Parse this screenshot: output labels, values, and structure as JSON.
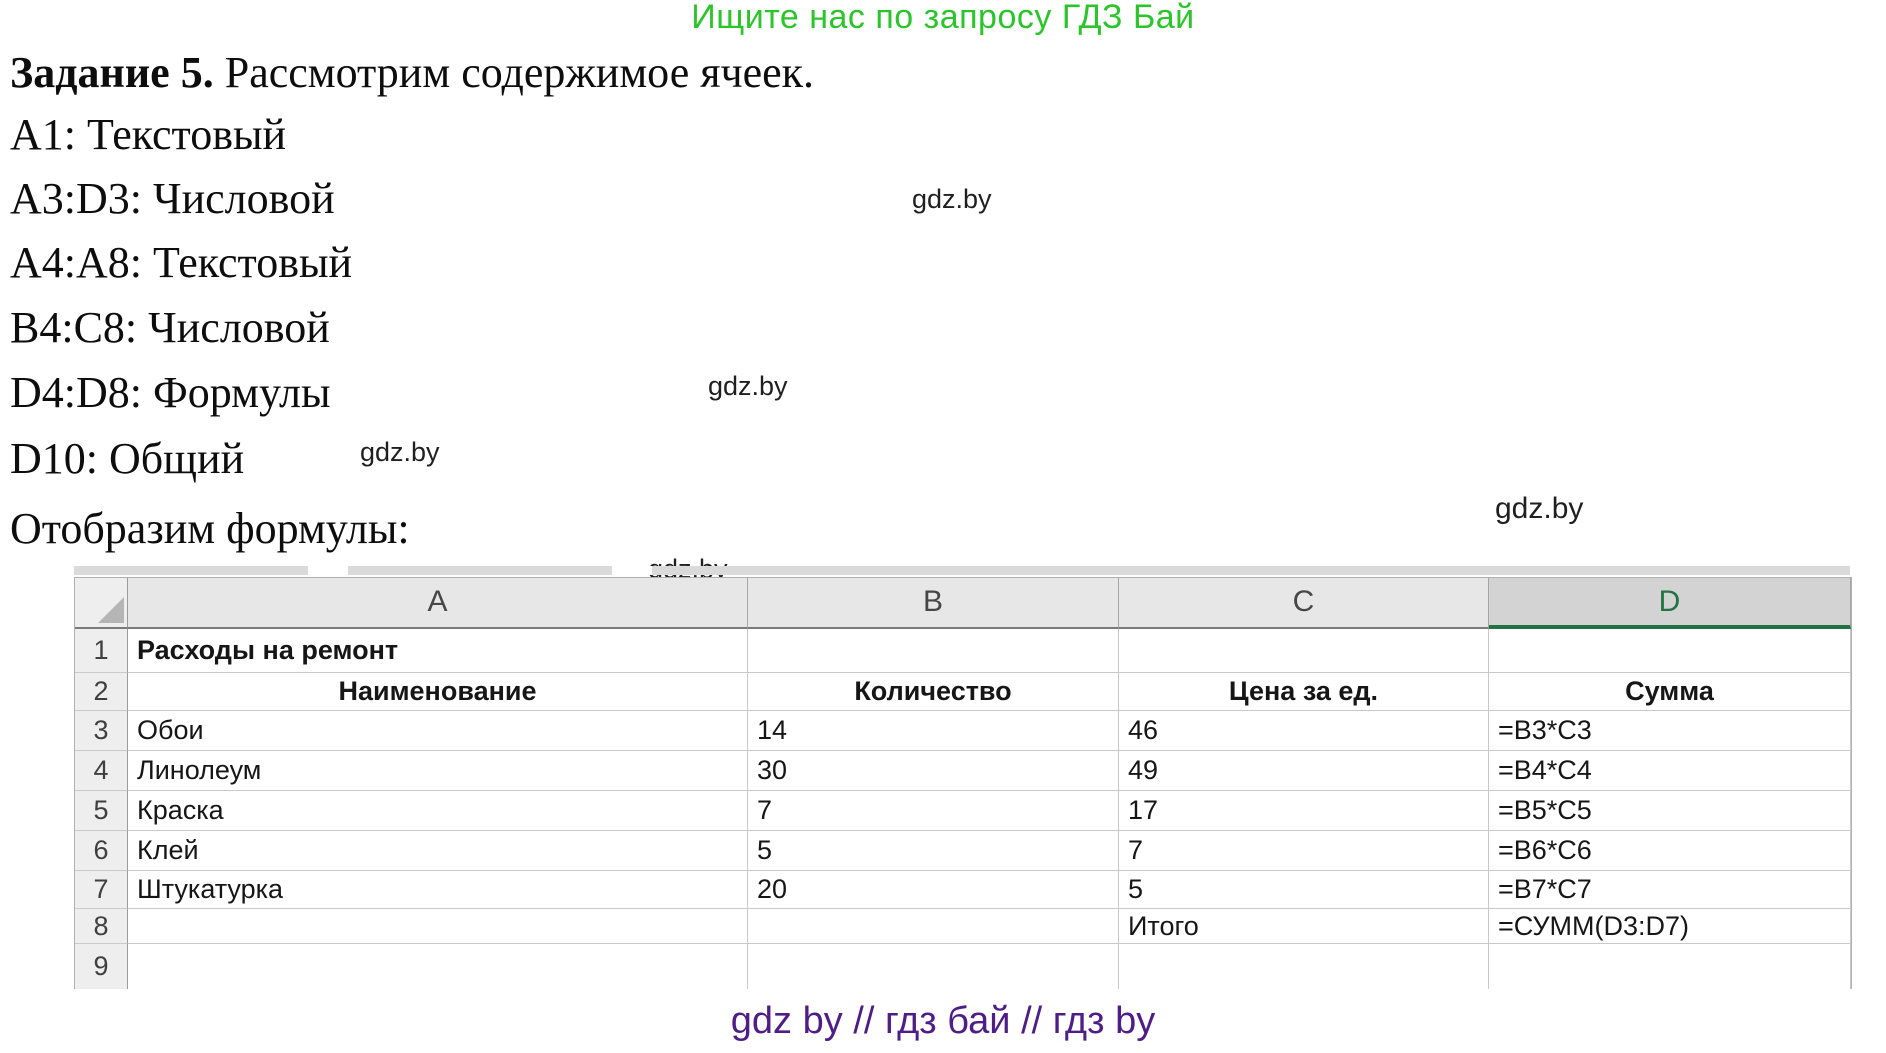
{
  "banner": {
    "text": "Ищите нас по запросу ГДЗ Бай",
    "color": "#2bc52b"
  },
  "task": {
    "heading_bold": "Задание 5.",
    "heading_rest": " Рассмотрим содержимое ячеек.",
    "lines": [
      "A1: Текстовый",
      "A3:D3: Числовой",
      "A4:A8: Текстовый",
      "B4:C8: Числовой",
      "D4:D8: Формулы",
      "D10: Общий"
    ],
    "show_formulas_label": "Отобразим формулы:"
  },
  "watermark": {
    "text": "gdz.by"
  },
  "spreadsheet": {
    "column_headers": [
      "A",
      "B",
      "C",
      "D"
    ],
    "selected_column": "D",
    "accent_green": "#217346",
    "row_numbers": [
      "1",
      "2",
      "3",
      "4",
      "5",
      "6",
      "7",
      "8",
      "9"
    ],
    "rows": [
      {
        "A": "Расходы на ремонт",
        "B": "",
        "C": "",
        "D": ""
      },
      {
        "A": "Наименование",
        "B": "Количество",
        "C": "Цена за ед.",
        "D": "Сумма"
      },
      {
        "A": "Обои",
        "B": "14",
        "C": "46",
        "D": "=B3*C3"
      },
      {
        "A": "Линолеум",
        "B": "30",
        "C": "49",
        "D": "=B4*C4"
      },
      {
        "A": "Краска",
        "B": "7",
        "C": "17",
        "D": "=B5*C5"
      },
      {
        "A": "Клей",
        "B": "5",
        "C": "7",
        "D": "=B6*C6"
      },
      {
        "A": "Штукатурка",
        "B": "20",
        "C": "5",
        "D": "=B7*C7"
      },
      {
        "A": "",
        "B": "",
        "C": "Итого",
        "D": "=СУММ(D3:D7)"
      },
      {
        "A": "",
        "B": "",
        "C": "",
        "D": ""
      }
    ]
  },
  "footer": {
    "text": "gdz by  //  гдз бай  //  гдз by",
    "color": "#4e1d86"
  }
}
